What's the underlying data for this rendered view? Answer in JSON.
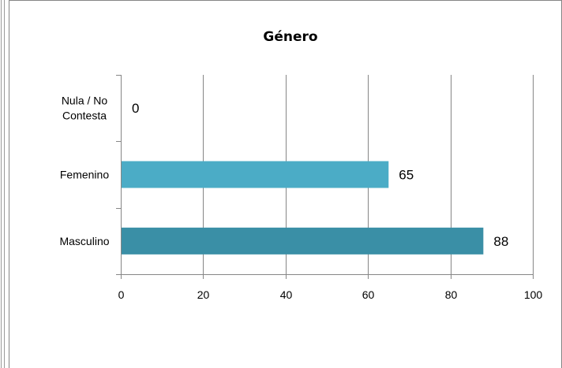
{
  "chart_data": {
    "type": "bar",
    "orientation": "horizontal",
    "title": "Género",
    "categories": [
      "Nula / No Contesta",
      "Femenino",
      "Masculino"
    ],
    "category_label_lines": [
      [
        "Nula / No",
        "Contesta"
      ],
      [
        "Femenino"
      ],
      [
        "Masculino"
      ]
    ],
    "values": [
      0,
      65,
      88
    ],
    "data_labels": [
      "0",
      "65",
      "88"
    ],
    "xlim": [
      0,
      100
    ],
    "x_ticks": [
      0,
      20,
      40,
      60,
      80,
      100
    ],
    "x_tick_labels": [
      "0",
      "20",
      "40",
      "60",
      "80",
      "100"
    ],
    "grid": true,
    "legend": "none",
    "bar_colors": [
      "#4bacc6",
      "#4bacc6",
      "#3a8fa6"
    ]
  }
}
